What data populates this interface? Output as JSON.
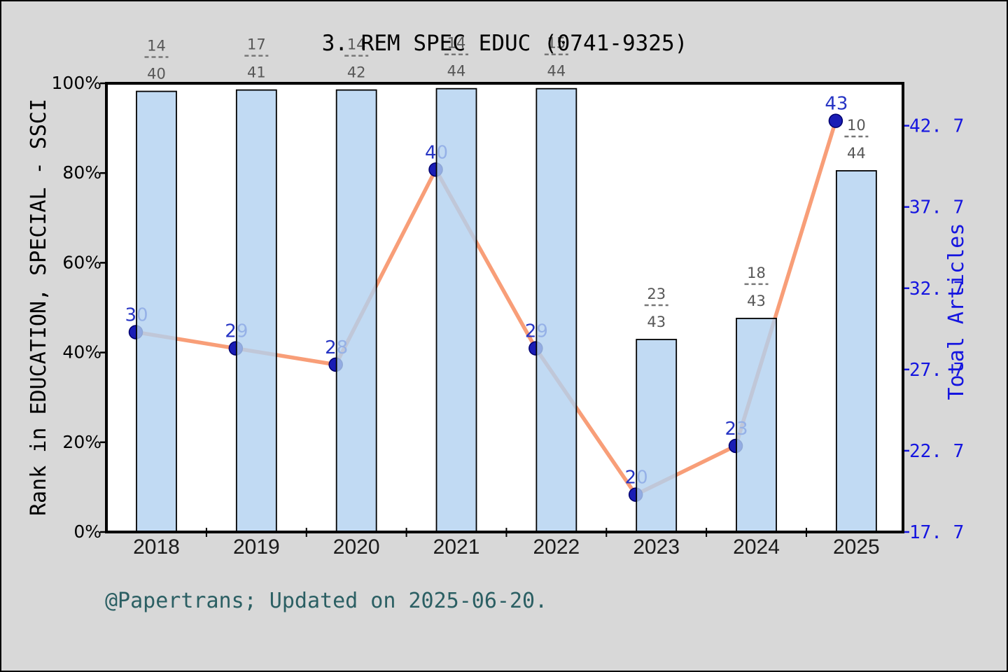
{
  "title": "3. REM SPEC EDUC (0741-9325)",
  "footer": "@Papertrans; Updated on 2025-06-20.",
  "left_axis": {
    "label": "Rank in EDUCATION, SPECIAL - SSCI",
    "tick_labels": [
      "0%",
      "20%",
      "40%",
      "60%",
      "80%",
      "100%"
    ],
    "tick_values": [
      0,
      20,
      40,
      60,
      80,
      100
    ],
    "range": [
      0,
      100
    ]
  },
  "right_axis": {
    "label": "Total Articles",
    "tick_labels": [
      "17. 7",
      "22. 7",
      "27. 7",
      "32. 7",
      "37. 7",
      "42. 7"
    ],
    "tick_values": [
      17.7,
      22.7,
      27.7,
      32.7,
      37.7,
      42.7
    ],
    "range": [
      17.7,
      45.31
    ]
  },
  "chart_data": {
    "type": "bar+line",
    "categories": [
      "2018",
      "2019",
      "2020",
      "2021",
      "2022",
      "2023",
      "2024",
      "2025"
    ],
    "series": [
      {
        "name": "rank-percentile-bars",
        "type": "bar",
        "axis": "left",
        "unit": "%",
        "values": [
          98.2,
          98.5,
          98.5,
          98.8,
          98.8,
          42.9,
          47.6,
          80.5
        ]
      },
      {
        "name": "total-articles-line",
        "type": "line",
        "axis": "right",
        "values": [
          30,
          29,
          28,
          40,
          29,
          20,
          23,
          43
        ]
      }
    ],
    "point_labels": [
      "30",
      "29",
      "28",
      "40",
      "29",
      "20",
      "23",
      "43"
    ],
    "rank_fractions": [
      {
        "numerator": "14",
        "denominator": "40"
      },
      {
        "numerator": "17",
        "denominator": "41"
      },
      {
        "numerator": "14",
        "denominator": "42"
      },
      {
        "numerator": "14",
        "denominator": "44"
      },
      {
        "numerator": "15",
        "denominator": "44"
      },
      {
        "numerator": "23",
        "denominator": "43"
      },
      {
        "numerator": "18",
        "denominator": "43"
      },
      {
        "numerator": "10",
        "denominator": "44"
      }
    ],
    "legend_position": "none",
    "grid": false
  },
  "colors": {
    "page_background": "#d8d8d8",
    "plot_background": "#ffffff",
    "frame": "#000000",
    "bar_fill": "#b1d1f0",
    "bar_fill_opacity": 0.8,
    "bar_edge": "#000000",
    "line": "#f89e78",
    "marker": "#1a1db5",
    "marker_edge": "#00006e",
    "point_label": "#2634c4",
    "fraction_text": "#575757",
    "year_label": "#1a1a1a",
    "left_tick_text": "#000000",
    "right_tick_text": "#1515e0",
    "right_axis_label": "#1515e0",
    "footer_text": "#2b5f63",
    "title_text": "#000000"
  }
}
